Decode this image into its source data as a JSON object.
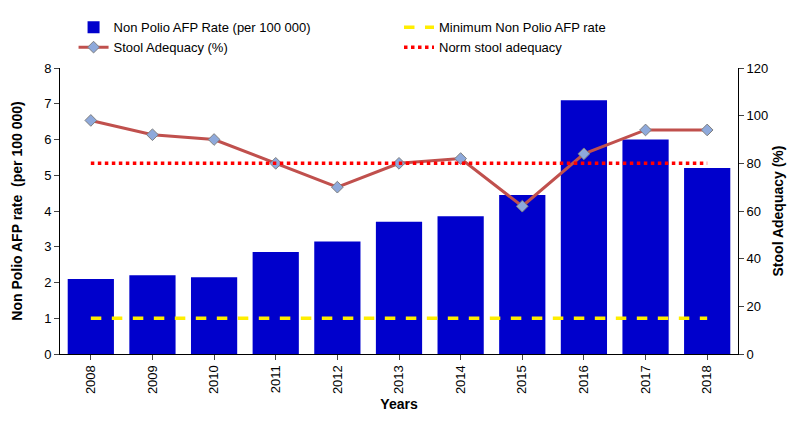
{
  "chart_data": {
    "type": "bar",
    "x_label": "Years",
    "y_label": "Non Polio AFP rate  (per 100 000)",
    "y2_label": "Stool Adequacy (%)",
    "categories": [
      "2008",
      "2009",
      "2010",
      "2011",
      "2012",
      "2013",
      "2014",
      "2015",
      "2016",
      "2017",
      "2018"
    ],
    "series": [
      {
        "name": "Non Polio AFP Rate (per 100 000)",
        "type": "bar",
        "color": "#0000cc",
        "values": [
          2.1,
          2.2,
          2.15,
          2.85,
          3.15,
          3.7,
          3.85,
          4.45,
          7.1,
          6.0,
          5.2
        ]
      },
      {
        "name": "Minimum Non Polio AFP rate",
        "type": "line",
        "color": "#ffee00",
        "line_style": "dashed",
        "values": [
          1,
          1,
          1,
          1,
          1,
          1,
          1,
          1,
          1,
          1,
          1
        ]
      },
      {
        "name": "Stool Adequacy (%)",
        "type": "line",
        "color": "#c0504d",
        "marker": "diamond",
        "axis": "y2",
        "values": [
          98,
          92,
          90,
          80,
          70,
          80,
          82,
          62,
          84,
          94,
          94
        ]
      },
      {
        "name": "Norm stool adequacy",
        "type": "line",
        "color": "#ff0000",
        "line_style": "dotted",
        "axis": "y2",
        "values": [
          80,
          80,
          80,
          80,
          80,
          80,
          80,
          80,
          80,
          80,
          80
        ]
      }
    ],
    "ylim": [
      0,
      8
    ],
    "yticks": [
      0,
      1,
      2,
      3,
      4,
      5,
      6,
      7,
      8
    ],
    "y2lim": [
      0,
      120
    ],
    "y2ticks": [
      0,
      20,
      40,
      60,
      80,
      100,
      120
    ],
    "grid": false,
    "legend": "top"
  }
}
